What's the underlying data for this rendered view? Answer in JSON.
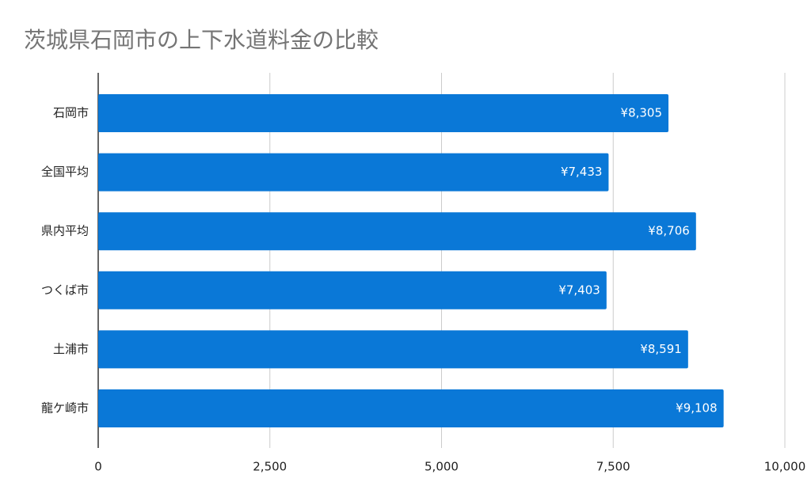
{
  "chart_data": {
    "type": "hbar",
    "title": "茨城県石岡市の上下水道料金の比較",
    "categories": [
      "石岡市",
      "全国平均",
      "県内平均",
      "つくば市",
      "土浦市",
      "龍ケ崎市"
    ],
    "values": [
      8305,
      7433,
      8706,
      7403,
      8591,
      9108
    ],
    "value_labels": [
      "¥8,305",
      "¥7,433",
      "¥8,706",
      "¥7,403",
      "¥8,591",
      "¥9,108"
    ],
    "color": "#0a78d7",
    "xlim": [
      0,
      10000
    ],
    "xticks": [
      0,
      {
        "value": 2500,
        "label": "2,500"
      },
      {
        "value": 5000,
        "label": "5,000"
      },
      {
        "value": 7500,
        "label": "7,500"
      },
      {
        "value": 10000,
        "label": "10,000"
      }
    ],
    "grid": true
  }
}
